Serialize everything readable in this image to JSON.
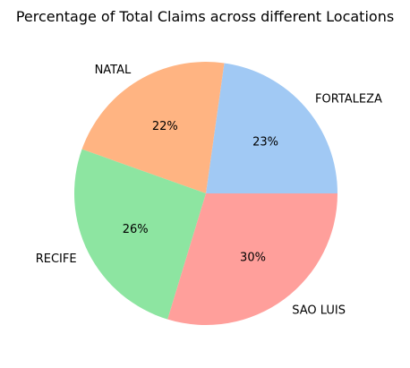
{
  "chart_data": {
    "type": "pie",
    "title": "Percentage of Total Claims across different Locations",
    "categories": [
      "FORTALEZA",
      "NATAL",
      "RECIFE",
      "SAO LUIS"
    ],
    "values": [
      23,
      22,
      26,
      30
    ],
    "value_labels": [
      "23%",
      "22%",
      "26%",
      "30%"
    ],
    "colors": [
      "#a1c9f4",
      "#ffb482",
      "#8de5a1",
      "#ff9f9b"
    ],
    "start_angle_deg": 0,
    "direction": "counterclockwise",
    "legend": "none"
  }
}
